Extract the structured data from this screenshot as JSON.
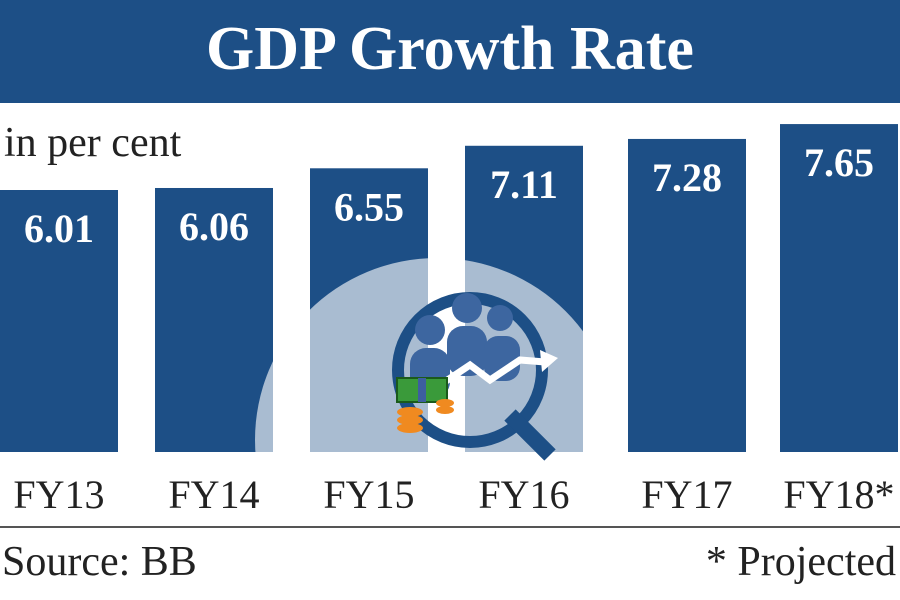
{
  "chart_data": {
    "type": "bar",
    "title": "GDP Growth Rate",
    "ylabel": "in per cent",
    "categories": [
      "FY13",
      "FY14",
      "FY15",
      "FY16",
      "FY17",
      "FY18*"
    ],
    "values": [
      6.01,
      6.06,
      6.55,
      7.11,
      7.28,
      7.65
    ],
    "value_labels": [
      "6.01",
      "6.06",
      "6.55",
      "7.11",
      "7.28",
      "7.65"
    ],
    "source": "Source: BB",
    "footnote": "* Projected",
    "grid": false,
    "legend": "none",
    "colors": {
      "bar": "#1d4f86",
      "title_band": "#1d4f86",
      "text": "#222222"
    },
    "illustration": "magnifier-people-growth-arrow-money-icon"
  }
}
